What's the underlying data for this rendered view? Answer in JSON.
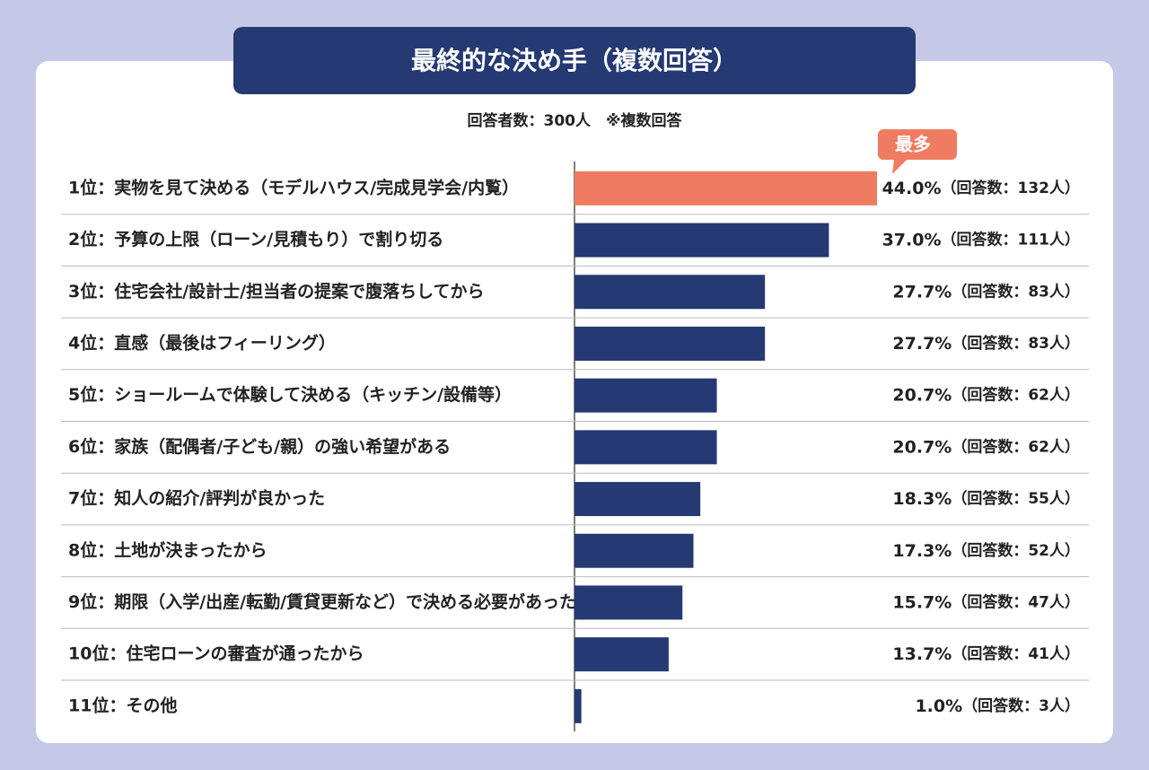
{
  "chart_data": {
    "type": "bar",
    "orientation": "horizontal",
    "title": "最終的な決め手（複数回答）",
    "subtitle": "回答者数：300人　※複数回答",
    "annotation": "最多",
    "categories": [
      "1位：実物を見て決める（モデルハウス/完成見学会/内覧）",
      "2位：予算の上限（ローン/見積もり）で割り切る",
      "3位：住宅会社/設計士/担当者の提案で腹落ちしてから",
      "4位：直感（最後はフィーリング）",
      "5位：ショールームで体験して決める（キッチン/設備等）",
      "6位：家族（配偶者/子ども/親）の強い希望がある",
      "7位：知人の紹介/評判が良かった",
      "8位：土地が決まったから",
      "9位：期限（入学/出産/転勤/賃貸更新など）で決める必要があった",
      "10位：住宅ローンの審査が通ったから",
      "11位：その他"
    ],
    "values": [
      44.0,
      37.0,
      27.7,
      27.7,
      20.7,
      20.7,
      18.3,
      17.3,
      15.7,
      13.7,
      1.0
    ],
    "value_labels": [
      "44.0%",
      "37.0%",
      "27.7%",
      "27.7%",
      "20.7%",
      "20.7%",
      "18.3%",
      "17.3%",
      "15.7%",
      "13.7%",
      "1.0%"
    ],
    "count_labels": [
      "（回答数：132人）",
      "（回答数：111人）",
      "（回答数：83人）",
      "（回答数：83人）",
      "（回答数：62人）",
      "（回答数：62人）",
      "（回答数：55人）",
      "（回答数：52人）",
      "（回答数：47人）",
      "（回答数：41人）",
      "（回答数：3人）"
    ],
    "colors": [
      "#ef7b61",
      "#253a73",
      "#253a73",
      "#253a73",
      "#253a73",
      "#253a73",
      "#253a73",
      "#253a73",
      "#253a73",
      "#253a73",
      "#253a73"
    ]
  }
}
